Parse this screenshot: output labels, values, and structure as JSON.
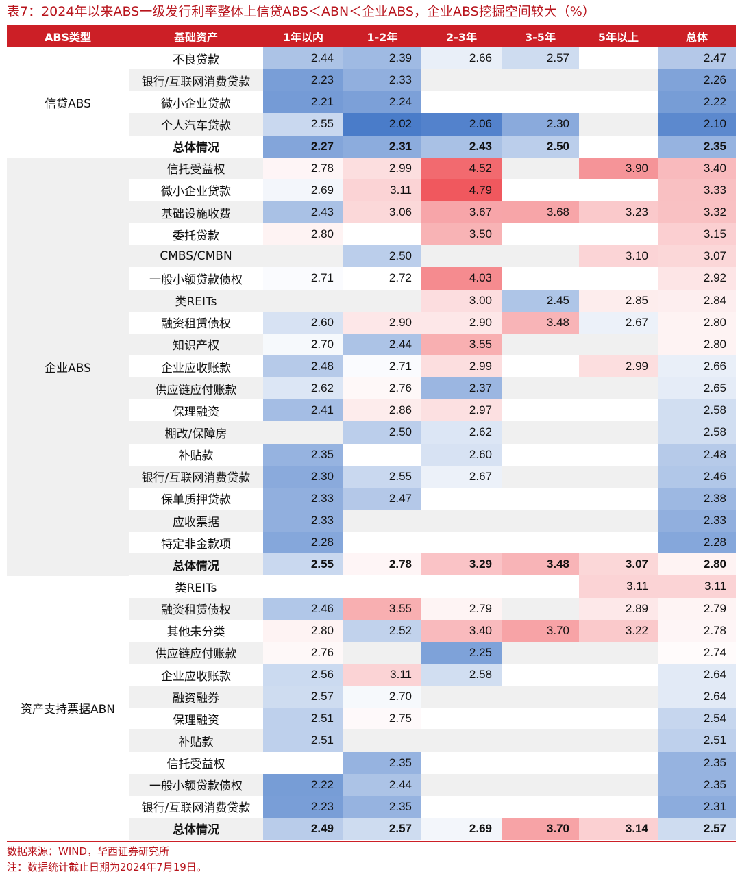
{
  "title": "表7：2024年以来ABS一级发行利率整体上信贷ABS＜ABN＜企业ABS，企业ABS挖掘空间较大（%）",
  "headers": [
    "ABS类型",
    "基础资产",
    "1年以内",
    "1-2年",
    "2-3年",
    "3-5年",
    "5年以上",
    "总体"
  ],
  "colors": {
    "header_bg": "#cc1f26",
    "title": "#b8141c",
    "low": "#4a7cc9",
    "high": "#f0585e"
  },
  "groups": [
    {
      "name": "信贷ABS",
      "rows": [
        {
          "asset": "不良贷款",
          "v": [
            "2.44",
            "2.39",
            "2.66",
            "2.57",
            "",
            "2.47"
          ]
        },
        {
          "asset": "银行/互联网消费贷款",
          "v": [
            "2.23",
            "2.33",
            "",
            "",
            "",
            "2.26"
          ]
        },
        {
          "asset": "微小企业贷款",
          "v": [
            "2.21",
            "2.24",
            "",
            "",
            "",
            "2.22"
          ]
        },
        {
          "asset": "个人汽车贷款",
          "v": [
            "2.55",
            "2.02",
            "2.06",
            "2.30",
            "",
            "2.10"
          ]
        },
        {
          "asset": "总体情况",
          "total": true,
          "v": [
            "2.27",
            "2.31",
            "2.43",
            "2.50",
            "",
            "2.35"
          ]
        }
      ]
    },
    {
      "name": "企业ABS",
      "rows": [
        {
          "asset": "信托受益权",
          "v": [
            "2.78",
            "2.99",
            "4.52",
            "",
            "3.90",
            "3.40"
          ]
        },
        {
          "asset": "微小企业贷款",
          "v": [
            "2.69",
            "3.11",
            "4.79",
            "",
            "",
            "3.33"
          ]
        },
        {
          "asset": "基础设施收费",
          "v": [
            "2.43",
            "3.06",
            "3.67",
            "3.68",
            "3.23",
            "3.32"
          ]
        },
        {
          "asset": "委托贷款",
          "v": [
            "2.80",
            "",
            "3.50",
            "",
            "",
            "3.15"
          ]
        },
        {
          "asset": "CMBS/CMBN",
          "v": [
            "",
            "2.50",
            "",
            "",
            "3.10",
            "3.07"
          ]
        },
        {
          "asset": "一般小额贷款债权",
          "v": [
            "2.71",
            "2.72",
            "4.03",
            "",
            "",
            "2.92"
          ]
        },
        {
          "asset": "类REITs",
          "v": [
            "",
            "",
            "3.00",
            "2.45",
            "2.85",
            "2.84"
          ]
        },
        {
          "asset": "融资租赁债权",
          "v": [
            "2.60",
            "2.90",
            "2.90",
            "3.48",
            "2.67",
            "2.80"
          ]
        },
        {
          "asset": "知识产权",
          "v": [
            "2.70",
            "2.44",
            "3.55",
            "",
            "",
            "2.80"
          ]
        },
        {
          "asset": "企业应收账款",
          "v": [
            "2.48",
            "2.71",
            "2.99",
            "",
            "2.99",
            "2.66"
          ]
        },
        {
          "asset": "供应链应付账款",
          "v": [
            "2.62",
            "2.76",
            "2.37",
            "",
            "",
            "2.65"
          ]
        },
        {
          "asset": "保理融资",
          "v": [
            "2.41",
            "2.86",
            "2.97",
            "",
            "",
            "2.58"
          ]
        },
        {
          "asset": "棚改/保障房",
          "v": [
            "",
            "2.50",
            "2.62",
            "",
            "",
            "2.58"
          ]
        },
        {
          "asset": "补贴款",
          "v": [
            "2.35",
            "",
            "2.60",
            "",
            "",
            "2.48"
          ]
        },
        {
          "asset": "银行/互联网消费贷款",
          "v": [
            "2.30",
            "2.55",
            "2.67",
            "",
            "",
            "2.46"
          ]
        },
        {
          "asset": "保单质押贷款",
          "v": [
            "2.33",
            "2.47",
            "",
            "",
            "",
            "2.38"
          ]
        },
        {
          "asset": "应收票据",
          "v": [
            "2.33",
            "",
            "",
            "",
            "",
            "2.33"
          ]
        },
        {
          "asset": "特定非金款项",
          "v": [
            "2.28",
            "",
            "",
            "",
            "",
            "2.28"
          ]
        },
        {
          "asset": "总体情况",
          "total": true,
          "v": [
            "2.55",
            "2.78",
            "3.29",
            "3.48",
            "3.07",
            "2.80"
          ]
        }
      ]
    },
    {
      "name": "资产支持票据ABN",
      "rows": [
        {
          "asset": "类REITs",
          "v": [
            "",
            "",
            "",
            "",
            "3.11",
            "3.11"
          ]
        },
        {
          "asset": "融资租赁债权",
          "v": [
            "2.46",
            "3.55",
            "2.79",
            "",
            "2.89",
            "2.79"
          ]
        },
        {
          "asset": "其他未分类",
          "v": [
            "2.80",
            "2.52",
            "3.40",
            "3.70",
            "3.22",
            "2.78"
          ]
        },
        {
          "asset": "供应链应付账款",
          "v": [
            "2.76",
            "",
            "2.25",
            "",
            "",
            "2.74"
          ]
        },
        {
          "asset": "企业应收账款",
          "v": [
            "2.56",
            "3.11",
            "2.58",
            "",
            "",
            "2.64"
          ]
        },
        {
          "asset": "融资融券",
          "v": [
            "2.57",
            "2.70",
            "",
            "",
            "",
            "2.64"
          ]
        },
        {
          "asset": "保理融资",
          "v": [
            "2.51",
            "2.75",
            "",
            "",
            "",
            "2.54"
          ]
        },
        {
          "asset": "补贴款",
          "v": [
            "2.51",
            "",
            "",
            "",
            "",
            "2.51"
          ]
        },
        {
          "asset": "信托受益权",
          "v": [
            "",
            "2.35",
            "",
            "",
            "",
            "2.35"
          ]
        },
        {
          "asset": "一般小额贷款债权",
          "v": [
            "2.22",
            "2.44",
            "",
            "",
            "",
            "2.35"
          ]
        },
        {
          "asset": "银行/互联网消费贷款",
          "v": [
            "2.23",
            "2.35",
            "",
            "",
            "",
            "2.31"
          ]
        },
        {
          "asset": "总体情况",
          "total": true,
          "v": [
            "2.49",
            "2.57",
            "2.69",
            "3.70",
            "3.14",
            "2.57"
          ]
        }
      ]
    }
  ],
  "footnotes": {
    "source": "数据来源：WIND，华西证券研究所",
    "note": "注：数据统计截止日期为2024年7月19日。"
  }
}
